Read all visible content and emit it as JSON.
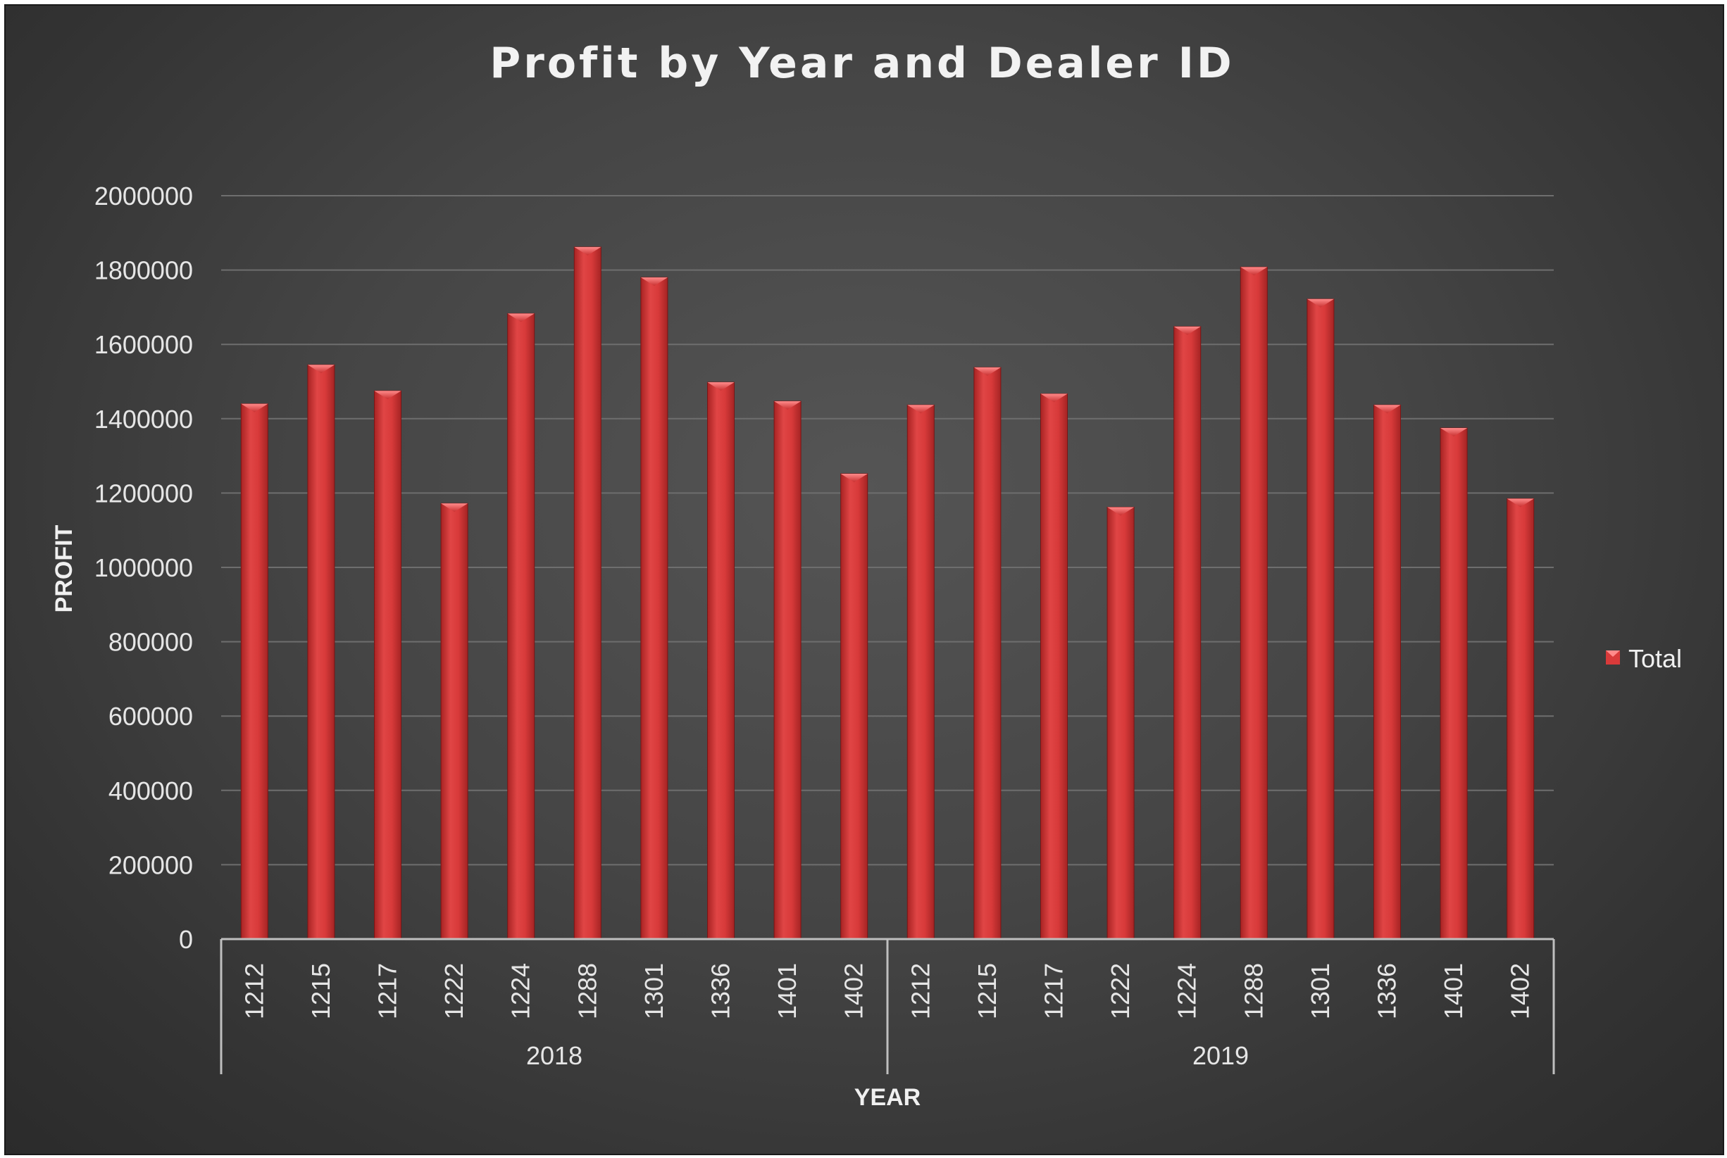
{
  "colors": {
    "bar": "#d93a3a",
    "bar_dark": "#9e2020",
    "bar_light": "#f06a6a",
    "grid": "#6e6e6e",
    "axis": "#bfbfbf",
    "text": "#e6e6e6"
  },
  "chart_data": {
    "type": "bar",
    "title": "Profit by Year and Dealer ID",
    "xlabel": "YEAR",
    "ylabel": "PROFIT",
    "ylim": [
      0,
      2000000
    ],
    "ytick_step": 200000,
    "yticks": [
      "0",
      "200000",
      "400000",
      "600000",
      "800000",
      "1000000",
      "1200000",
      "1400000",
      "1600000",
      "1800000",
      "2000000"
    ],
    "grid": true,
    "legend": {
      "position": "right",
      "entries": [
        "Total"
      ]
    },
    "groups": [
      {
        "label": "2018",
        "categories": [
          "1212",
          "1215",
          "1217",
          "1222",
          "1224",
          "1288",
          "1301",
          "1336",
          "1401",
          "1402"
        ],
        "values": [
          1440000,
          1545000,
          1475000,
          1172000,
          1683000,
          1862000,
          1780000,
          1498000,
          1447000,
          1252000
        ]
      },
      {
        "label": "2019",
        "categories": [
          "1212",
          "1215",
          "1217",
          "1222",
          "1224",
          "1288",
          "1301",
          "1336",
          "1401",
          "1402"
        ],
        "values": [
          1437000,
          1538000,
          1467000,
          1162000,
          1648000,
          1808000,
          1722000,
          1437000,
          1375000,
          1185000
        ]
      }
    ],
    "series": [
      {
        "name": "Total"
      }
    ]
  }
}
